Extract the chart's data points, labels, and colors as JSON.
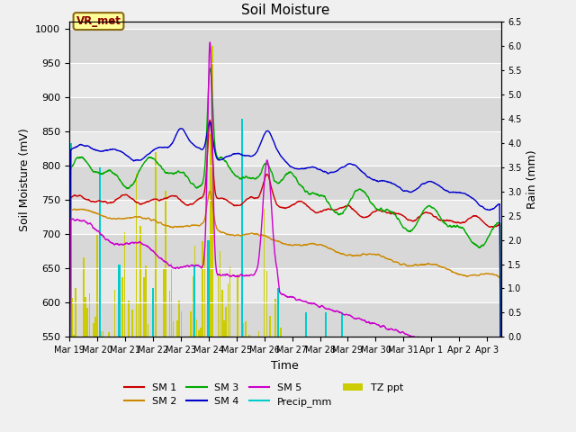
{
  "title": "Soil Moisture",
  "ylabel_left": "Soil Moisture (mV)",
  "ylabel_right": "Rain (mm)",
  "xlabel": "Time",
  "ylim_left": [
    550,
    1010
  ],
  "ylim_right": [
    0.0,
    6.5
  ],
  "x_tick_labels": [
    "Mar 19",
    "Mar 20",
    "Mar 21",
    "Mar 22",
    "Mar 23",
    "Mar 24",
    "Mar 25",
    "Mar 26",
    "Mar 27",
    "Mar 28",
    "Mar 29",
    "Mar 30",
    "Mar 31",
    "Apr 1",
    "Apr 2",
    "Apr 3"
  ],
  "station_label": "VR_met",
  "station_label_color": "#8B0000",
  "station_box_color": "#ffff99",
  "station_box_edge": "#8B6914",
  "colors": {
    "SM1": "#cc0000",
    "SM2": "#cc8800",
    "SM3": "#00aa00",
    "SM4": "#0000cc",
    "SM5": "#cc00cc",
    "precip": "#00cccc",
    "tz": "#cccc00"
  },
  "bg_bands": [
    [
      550,
      600,
      "#d8d8d8"
    ],
    [
      600,
      650,
      "#e8e8e8"
    ],
    [
      650,
      700,
      "#d8d8d8"
    ],
    [
      700,
      750,
      "#e8e8e8"
    ],
    [
      750,
      800,
      "#d8d8d8"
    ],
    [
      800,
      850,
      "#e8e8e8"
    ],
    [
      850,
      900,
      "#d8d8d8"
    ],
    [
      900,
      950,
      "#e8e8e8"
    ],
    [
      950,
      1000,
      "#d8d8d8"
    ],
    [
      1000,
      1010,
      "#e8e8e8"
    ]
  ]
}
